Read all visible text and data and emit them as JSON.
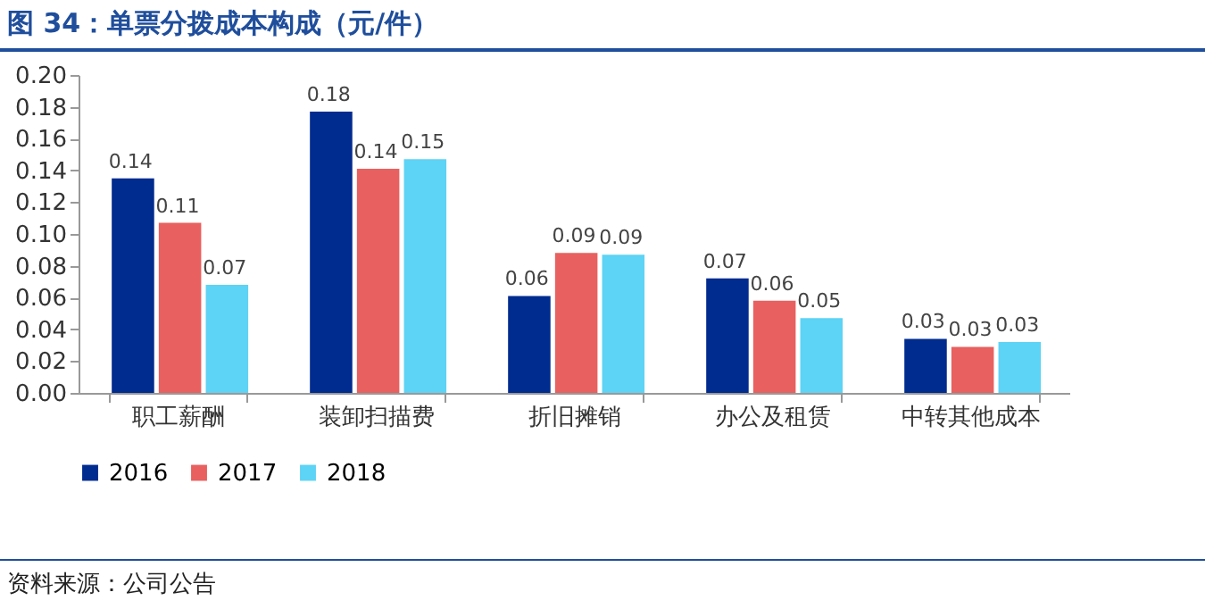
{
  "chart_data": {
    "type": "bar",
    "title": "图 34：单票分拨成本构成（元/件）",
    "categories": [
      "职工薪酬",
      "装卸扫描费",
      "折旧摊销",
      "办公及租赁",
      "中转其他成本"
    ],
    "series": [
      {
        "name": "2016",
        "color": "#002b8f",
        "values": [
          0.135,
          0.177,
          0.061,
          0.072,
          0.034
        ],
        "value_labels": [
          "0.14",
          "0.18",
          "0.06",
          "0.07",
          "0.03"
        ]
      },
      {
        "name": "2017",
        "color": "#e8605f",
        "values": [
          0.107,
          0.141,
          0.088,
          0.058,
          0.029
        ],
        "value_labels": [
          "0.11",
          "0.14",
          "0.09",
          "0.06",
          "0.03"
        ]
      },
      {
        "name": "2018",
        "color": "#5dd3f5",
        "values": [
          0.068,
          0.147,
          0.087,
          0.047,
          0.032
        ],
        "value_labels": [
          "0.07",
          "0.15",
          "0.09",
          "0.05",
          "0.03"
        ]
      }
    ],
    "ylim": [
      0,
      0.2
    ],
    "yticks": [
      {
        "value": 0,
        "label": "0.00"
      },
      {
        "value": 0.02,
        "label": "0.02"
      },
      {
        "value": 0.04,
        "label": "0.04"
      },
      {
        "value": 0.06,
        "label": "0.06"
      },
      {
        "value": 0.08,
        "label": "0.08"
      },
      {
        "value": 0.1,
        "label": "0.10"
      },
      {
        "value": 0.12,
        "label": "0.12"
      },
      {
        "value": 0.14,
        "label": "0.14"
      },
      {
        "value": 0.16,
        "label": "0.16"
      },
      {
        "value": 0.18,
        "label": "0.18"
      },
      {
        "value": 0.2,
        "label": "0.20"
      }
    ],
    "legend": "bottom",
    "annotations": [
      "资料来源：公司公告"
    ]
  }
}
